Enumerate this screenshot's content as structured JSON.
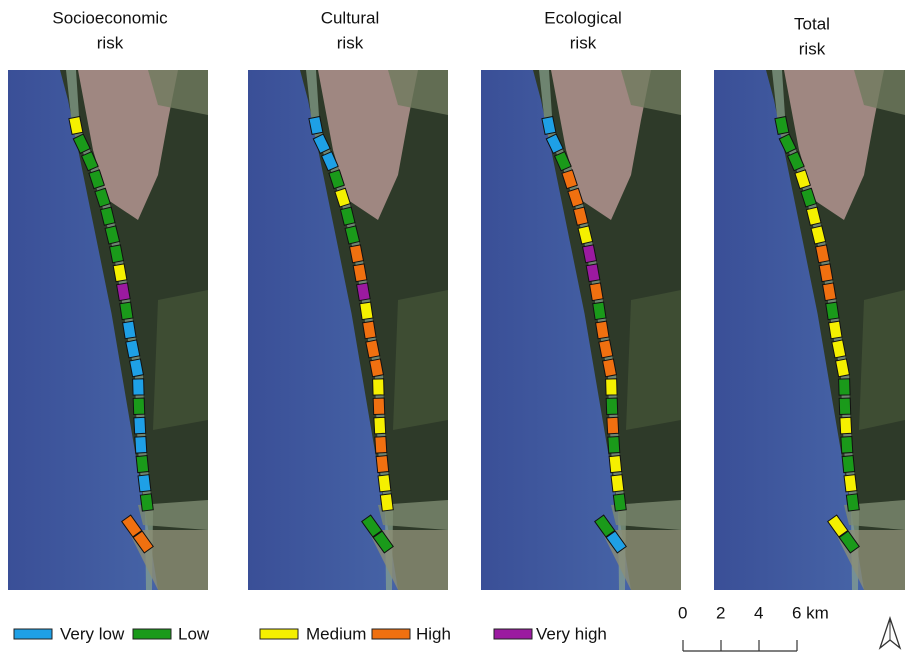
{
  "panels": [
    {
      "title_lines": [
        "Socioeconomic",
        "risk"
      ],
      "segments": [
        2,
        1,
        1,
        1,
        1,
        1,
        1,
        1,
        2,
        4,
        1,
        0,
        0,
        0,
        0,
        1,
        0,
        0,
        1,
        0,
        1,
        3,
        3
      ]
    },
    {
      "title_lines": [
        "Cultural",
        "risk"
      ],
      "segments": [
        0,
        0,
        0,
        1,
        2,
        1,
        1,
        3,
        3,
        4,
        2,
        3,
        3,
        3,
        2,
        3,
        2,
        3,
        3,
        2,
        2,
        1,
        1
      ]
    },
    {
      "title_lines": [
        "Ecological",
        "risk"
      ],
      "segments": [
        0,
        0,
        1,
        3,
        3,
        3,
        2,
        4,
        4,
        3,
        1,
        3,
        3,
        3,
        2,
        1,
        3,
        1,
        2,
        2,
        1,
        1,
        0
      ]
    },
    {
      "title_lines": [
        "Total",
        "risk"
      ],
      "segments": [
        1,
        1,
        1,
        2,
        1,
        2,
        2,
        3,
        3,
        3,
        1,
        2,
        2,
        2,
        1,
        1,
        2,
        1,
        1,
        2,
        1,
        2,
        1
      ]
    }
  ],
  "legend": [
    {
      "label": "Very low",
      "color": "#1ea0e6"
    },
    {
      "label": "Low",
      "color": "#1a9a1a"
    },
    {
      "label": "Medium",
      "color": "#f5f000"
    },
    {
      "label": "High",
      "color": "#f07010"
    },
    {
      "label": "Very high",
      "color": "#9b1aa0"
    }
  ],
  "scale_bar": {
    "labels": [
      "0",
      "2",
      "4",
      "6 km"
    ]
  }
}
